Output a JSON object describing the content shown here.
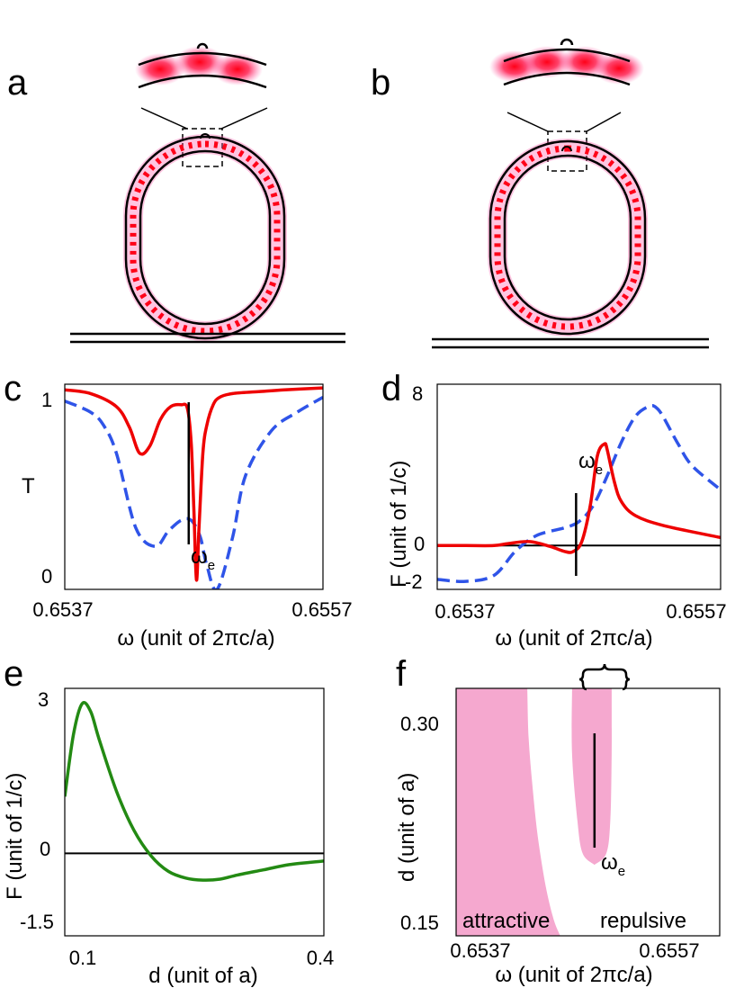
{
  "panel_labels": {
    "a": "a",
    "b": "b",
    "c": "c",
    "d": "d",
    "e": "e",
    "f": "f"
  },
  "colors": {
    "red": "#ee0000",
    "blue": "#2f54e8",
    "green": "#238a13",
    "pink": "#f5a8cf",
    "black": "#000000"
  },
  "omega_e": {
    "symbol": "ω",
    "sub": "e"
  },
  "chart_data": [
    {
      "panel": "c",
      "type": "line",
      "ylabel": "T",
      "xlabel": "ω (unit of 2πc/a)",
      "xticks": [
        "0.6537",
        "0.6557"
      ],
      "yticks": [
        "1",
        "0"
      ],
      "xlim": [
        0.6537,
        0.6557
      ],
      "ylim": [
        -0.03,
        1.07
      ],
      "marker_x": 0.65466,
      "series": [
        {
          "name": "red",
          "style": "solid",
          "color": "#ee0000",
          "x": [
            0.6537,
            0.6539,
            0.6541,
            0.6542,
            0.65428,
            0.65436,
            0.65444,
            0.65452,
            0.6546,
            0.65465,
            0.65468,
            0.6547,
            0.65472,
            0.65474,
            0.65477,
            0.6548,
            0.65485,
            0.6549,
            0.655,
            0.6552,
            0.6554,
            0.6557
          ],
          "y": [
            1.04,
            1.02,
            0.95,
            0.84,
            0.7,
            0.74,
            0.88,
            0.95,
            0.96,
            0.94,
            0.75,
            0.4,
            0.02,
            0.3,
            0.7,
            0.85,
            0.96,
            1.0,
            1.02,
            1.03,
            1.04,
            1.05
          ]
        },
        {
          "name": "blue",
          "style": "dashed",
          "color": "#2f54e8",
          "x": [
            0.6537,
            0.6539,
            0.654,
            0.6541,
            0.65425,
            0.6544,
            0.6545,
            0.6546,
            0.65468,
            0.65475,
            0.6548,
            0.65488,
            0.655,
            0.6551,
            0.6553,
            0.6555,
            0.6557
          ],
          "y": [
            0.98,
            0.92,
            0.85,
            0.7,
            0.3,
            0.2,
            0.28,
            0.34,
            0.34,
            0.25,
            0.1,
            -0.03,
            0.25,
            0.58,
            0.82,
            0.92,
            1.0
          ]
        }
      ]
    },
    {
      "panel": "d",
      "type": "line",
      "ylabel": "F (unit of 1/c)",
      "xlabel": "ω (unit of 2πc/a)",
      "xticks": [
        "0.6537",
        "0.6557"
      ],
      "yticks": [
        "8",
        "0",
        "-2"
      ],
      "xlim": [
        0.6537,
        0.6557
      ],
      "ylim": [
        -2.2,
        8.1
      ],
      "marker_x": 0.65468,
      "series": [
        {
          "name": "red",
          "style": "solid",
          "color": "#ee0000",
          "x": [
            0.6537,
            0.6539,
            0.6541,
            0.6542,
            0.65435,
            0.6545,
            0.6546,
            0.65466,
            0.65472,
            0.65478,
            0.65483,
            0.65488,
            0.6549,
            0.65495,
            0.655,
            0.6551,
            0.6553,
            0.6557
          ],
          "y": [
            0,
            0,
            0,
            0.1,
            0.2,
            -0.05,
            -0.3,
            -0.3,
            0.2,
            2.0,
            4.5,
            5.1,
            4.8,
            3.2,
            2.2,
            1.5,
            1.0,
            0.4
          ]
        },
        {
          "name": "blue",
          "style": "dashed",
          "color": "#2f54e8",
          "x": [
            0.6537,
            0.6539,
            0.6541,
            0.65425,
            0.6544,
            0.6546,
            0.6547,
            0.6548,
            0.6549,
            0.655,
            0.6551,
            0.6552,
            0.65525,
            0.6553,
            0.6554,
            0.6555,
            0.6557
          ],
          "y": [
            -1.7,
            -1.8,
            -1.5,
            -0.3,
            0.5,
            0.9,
            1.2,
            2.0,
            3.5,
            5.2,
            6.5,
            7.0,
            6.9,
            6.4,
            5.1,
            4.0,
            2.8
          ]
        }
      ]
    },
    {
      "panel": "e",
      "type": "line",
      "ylabel": "F (unit of 1/c)",
      "xlabel": "d (unit of a)",
      "xticks": [
        "0.1",
        "0.4"
      ],
      "yticks": [
        "3",
        "0",
        "-1.5"
      ],
      "xlim": [
        0.1,
        0.4
      ],
      "ylim": [
        -1.6,
        3.2
      ],
      "series": [
        {
          "name": "green",
          "style": "solid",
          "color": "#238a13",
          "x": [
            0.1,
            0.11,
            0.12,
            0.13,
            0.14,
            0.16,
            0.18,
            0.2,
            0.22,
            0.24,
            0.26,
            0.28,
            0.3,
            0.33,
            0.36,
            0.4
          ],
          "y": [
            1.1,
            2.3,
            2.9,
            2.75,
            2.2,
            1.2,
            0.45,
            -0.05,
            -0.35,
            -0.48,
            -0.52,
            -0.5,
            -0.42,
            -0.32,
            -0.22,
            -0.15
          ]
        }
      ]
    },
    {
      "panel": "f",
      "type": "area",
      "ylabel": "d (unit of a)",
      "xlabel": "ω (unit of 2πc/a)",
      "xticks": [
        "0.6537",
        "0.6557"
      ],
      "yticks": [
        "0.30",
        "0.15"
      ],
      "xlim": [
        0.6537,
        0.6557
      ],
      "ylim": [
        0.15,
        0.3
      ],
      "marker_x": 0.65475,
      "regions": [
        {
          "name": "attractive",
          "label": "attractive",
          "color": "#f5a8cf",
          "boundary_x": [
            0.65424,
            0.65425,
            0.65428,
            0.65432,
            0.65438,
            0.65444,
            0.65449
          ],
          "boundary_y": [
            0.3,
            0.27,
            0.24,
            0.21,
            0.18,
            0.16,
            0.15
          ]
        },
        {
          "name": "repulsive",
          "label": "repulsive",
          "color": "#f5a8cf",
          "left_x": [
            0.65458,
            0.65458,
            0.65462,
            0.65466,
            0.65475
          ],
          "left_y": [
            0.3,
            0.26,
            0.22,
            0.2,
            0.193
          ],
          "right_x": [
            0.65488,
            0.65488,
            0.65487,
            0.65484,
            0.65475
          ],
          "right_y": [
            0.3,
            0.26,
            0.22,
            0.2,
            0.193
          ]
        }
      ]
    }
  ]
}
